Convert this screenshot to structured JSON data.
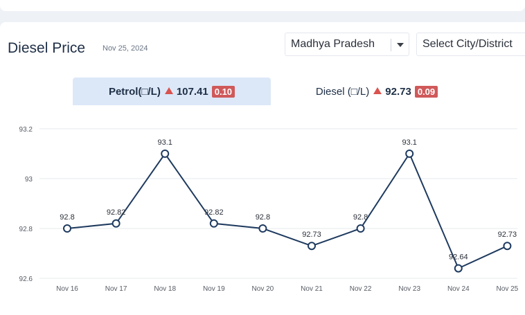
{
  "header": {
    "title": "Diesel Price",
    "date": "Nov 25, 2024"
  },
  "selects": {
    "state": "Madhya Pradesh",
    "city": "Select City/District"
  },
  "tabs": {
    "petrol": {
      "label": "Petrol(□/L)",
      "price": "107.41",
      "change": "0.10"
    },
    "diesel": {
      "label": "Diesel (□/L)",
      "price": "92.73",
      "change": "0.09"
    }
  },
  "colors": {
    "line": "#1e3a5f",
    "up_arrow": "#d9534f",
    "badge": "#d0595a",
    "grid": "#e6e8ec"
  },
  "chart_data": {
    "type": "line",
    "categories": [
      "Nov 16",
      "Nov 17",
      "Nov 18",
      "Nov 19",
      "Nov 20",
      "Nov 21",
      "Nov 22",
      "Nov 23",
      "Nov 24",
      "Nov 25"
    ],
    "values": [
      92.8,
      92.82,
      93.1,
      92.82,
      92.8,
      92.73,
      92.8,
      93.1,
      92.64,
      92.73
    ],
    "data_labels": [
      "92.8",
      "92.82",
      "93.1",
      "92.82",
      "92.8",
      "92.73",
      "92.8",
      "93.1",
      "92.64",
      "92.73"
    ],
    "y_ticks": [
      "92.6",
      "92.8",
      "93",
      "93.2"
    ],
    "ylim": [
      92.6,
      93.2
    ],
    "grid": true,
    "legend": "none"
  }
}
